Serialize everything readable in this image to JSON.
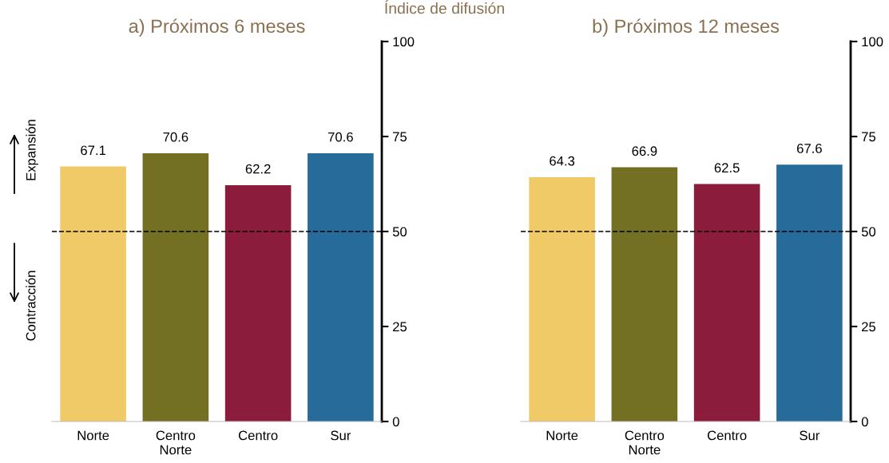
{
  "chart_data": [
    {
      "type": "bar",
      "title": "a) Próximos 6 meses",
      "categories": [
        "Norte",
        "Centro\nNorte",
        "Centro",
        "Sur"
      ],
      "values": [
        67.1,
        70.6,
        62.2,
        70.6
      ],
      "colors": [
        "#f0ca66",
        "#736f23",
        "#8c1c3c",
        "#276b9a"
      ],
      "ylim": [
        0,
        100
      ],
      "yticks": [
        0,
        25,
        50,
        75,
        100
      ],
      "data_labels": true,
      "grid": false,
      "ref_lines": [
        {
          "axis": "y",
          "value": 50,
          "color": "#000000",
          "line_style": "dashed"
        }
      ],
      "annotations": [
        "Índice de difusión",
        "Expansión",
        "Contracción"
      ]
    },
    {
      "type": "bar",
      "title": "b) Próximos 12 meses",
      "categories": [
        "Norte",
        "Centro\nNorte",
        "Centro",
        "Sur"
      ],
      "values": [
        64.3,
        66.9,
        62.5,
        67.6
      ],
      "colors": [
        "#f0ca66",
        "#736f23",
        "#8c1c3c",
        "#276b9a"
      ],
      "ylim": [
        0,
        100
      ],
      "yticks": [
        0,
        25,
        50,
        75,
        100
      ],
      "data_labels": true,
      "grid": false,
      "ref_lines": [
        {
          "axis": "y",
          "value": 50,
          "color": "#000000",
          "line_style": "dashed"
        }
      ]
    }
  ]
}
